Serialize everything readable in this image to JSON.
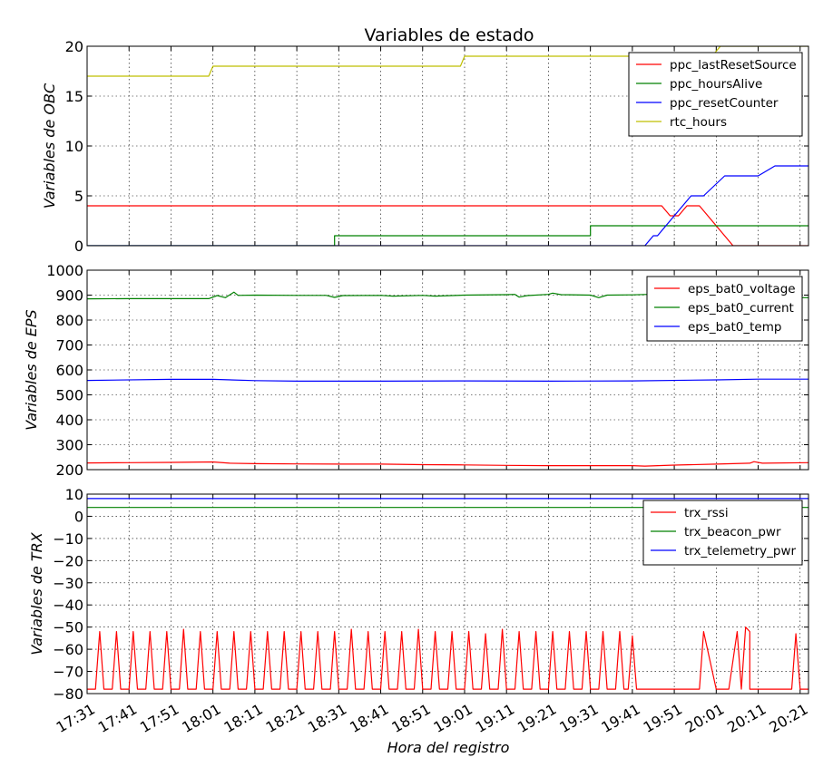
{
  "title": "Variables de estado",
  "xlabel": "Hora del registro",
  "x_ticks": [
    "17:31",
    "17:41",
    "17:51",
    "18:01",
    "18:11",
    "18:21",
    "18:31",
    "18:41",
    "18:51",
    "19:01",
    "19:11",
    "19:21",
    "19:31",
    "19:41",
    "19:51",
    "20:01",
    "20:11",
    "20:21"
  ],
  "chart_data": [
    {
      "type": "line",
      "ylabel": "Variables de OBC",
      "ylim": [
        0,
        20
      ],
      "yticks": [
        0,
        5,
        10,
        15,
        20
      ],
      "xlim": [
        "17:31",
        "20:23"
      ],
      "grid": true,
      "legend_position": "top-right",
      "series": [
        {
          "name": "ppc_lastResetSource",
          "color": "#ff0000",
          "points": [
            [
              "17:31",
              4
            ],
            [
              "19:48",
              4
            ],
            [
              "19:50",
              3
            ],
            [
              "19:52",
              3
            ],
            [
              "19:54",
              4
            ],
            [
              "19:57",
              4
            ],
            [
              "20:05",
              0
            ],
            [
              "20:23",
              0
            ]
          ]
        },
        {
          "name": "ppc_hoursAlive",
          "color": "#008000",
          "points": [
            [
              "17:31",
              0
            ],
            [
              "18:30",
              0
            ],
            [
              "18:30",
              1
            ],
            [
              "19:31",
              1
            ],
            [
              "19:31",
              2
            ],
            [
              "20:23",
              2
            ]
          ]
        },
        {
          "name": "ppc_resetCounter",
          "color": "#0000ff",
          "points": [
            [
              "17:31",
              0
            ],
            [
              "19:44",
              0
            ],
            [
              "19:46",
              1
            ],
            [
              "19:47",
              1
            ],
            [
              "19:55",
              5
            ],
            [
              "19:58",
              5
            ],
            [
              "20:03",
              7
            ],
            [
              "20:11",
              7
            ],
            [
              "20:15",
              8
            ],
            [
              "20:23",
              8
            ]
          ]
        },
        {
          "name": "rtc_hours",
          "color": "#bfbf00",
          "points": [
            [
              "17:31",
              17
            ],
            [
              "18:00",
              17
            ],
            [
              "18:01",
              18
            ],
            [
              "19:00",
              18
            ],
            [
              "19:01",
              19
            ],
            [
              "20:00",
              19
            ],
            [
              "20:02",
              20
            ],
            [
              "20:23",
              20
            ]
          ]
        }
      ]
    },
    {
      "type": "line",
      "ylabel": "Variables de EPS",
      "ylim": [
        200,
        1000
      ],
      "yticks": [
        200,
        300,
        400,
        500,
        600,
        700,
        800,
        900,
        1000
      ],
      "xlim": [
        "17:31",
        "20:23"
      ],
      "grid": true,
      "legend_position": "top-right",
      "series": [
        {
          "name": "eps_bat0_voltage",
          "color": "#ff0000",
          "points": [
            [
              "17:31",
              227
            ],
            [
              "17:41",
              228
            ],
            [
              "17:51",
              229
            ],
            [
              "18:01",
              231
            ],
            [
              "18:05",
              226
            ],
            [
              "18:11",
              224
            ],
            [
              "18:21",
              223
            ],
            [
              "18:31",
              222
            ],
            [
              "18:41",
              222
            ],
            [
              "18:51",
              220
            ],
            [
              "19:01",
              219
            ],
            [
              "19:11",
              217
            ],
            [
              "19:21",
              216
            ],
            [
              "19:31",
              216
            ],
            [
              "19:41",
              216
            ],
            [
              "19:44",
              214
            ],
            [
              "19:51",
              218
            ],
            [
              "20:01",
              222
            ],
            [
              "20:09",
              226
            ],
            [
              "20:10",
              232
            ],
            [
              "20:12",
              226
            ],
            [
              "20:23",
              228
            ]
          ]
        },
        {
          "name": "eps_bat0_current",
          "color": "#008000",
          "points": [
            [
              "17:31",
              885
            ],
            [
              "17:41",
              886
            ],
            [
              "17:51",
              886
            ],
            [
              "18:00",
              886
            ],
            [
              "18:02",
              898
            ],
            [
              "18:04",
              890
            ],
            [
              "18:06",
              912
            ],
            [
              "18:07",
              899
            ],
            [
              "18:11",
              900
            ],
            [
              "18:21",
              899
            ],
            [
              "18:28",
              899
            ],
            [
              "18:30",
              891
            ],
            [
              "18:32",
              898
            ],
            [
              "18:41",
              899
            ],
            [
              "18:44",
              896
            ],
            [
              "18:51",
              899
            ],
            [
              "18:54",
              896
            ],
            [
              "19:01",
              900
            ],
            [
              "19:11",
              902
            ],
            [
              "19:13",
              903
            ],
            [
              "19:14",
              892
            ],
            [
              "19:16",
              898
            ],
            [
              "19:21",
              903
            ],
            [
              "19:22",
              908
            ],
            [
              "19:24",
              902
            ],
            [
              "19:31",
              900
            ],
            [
              "19:33",
              890
            ],
            [
              "19:35",
              900
            ],
            [
              "19:41",
              901
            ],
            [
              "19:45",
              903
            ],
            [
              "19:47",
              888
            ],
            [
              "19:51",
              889
            ],
            [
              "20:01",
              889
            ],
            [
              "20:11",
              890
            ],
            [
              "20:23",
              890
            ]
          ]
        },
        {
          "name": "eps_bat0_temp",
          "color": "#0000ff",
          "points": [
            [
              "17:31",
              558
            ],
            [
              "17:51",
              562
            ],
            [
              "18:01",
              562
            ],
            [
              "18:11",
              557
            ],
            [
              "18:21",
              555
            ],
            [
              "18:41",
              555
            ],
            [
              "19:01",
              556
            ],
            [
              "19:21",
              555
            ],
            [
              "19:41",
              556
            ],
            [
              "20:01",
              560
            ],
            [
              "20:11",
              563
            ],
            [
              "20:23",
              563
            ]
          ]
        }
      ]
    },
    {
      "type": "line",
      "ylabel": "Variables de TRX",
      "ylim": [
        -80,
        10
      ],
      "yticks": [
        10,
        0,
        -10,
        -20,
        -30,
        -40,
        -50,
        -60,
        -70,
        -80
      ],
      "ytick_labels": [
        "10",
        "0",
        "−10",
        "−20",
        "−30",
        "−40",
        "−50",
        "−60",
        "−70",
        "−80"
      ],
      "xlim": [
        "17:31",
        "20:23"
      ],
      "grid": true,
      "legend_position": "top-right",
      "series": [
        {
          "name": "trx_rssi",
          "color": "#ff0000",
          "points": [
            [
              "17:31",
              -78
            ],
            [
              "17:33",
              -78
            ],
            [
              "17:34",
              -52
            ],
            [
              "17:35",
              -78
            ],
            [
              "17:37",
              -78
            ],
            [
              "17:38",
              -52
            ],
            [
              "17:39",
              -78
            ],
            [
              "17:41",
              -78
            ],
            [
              "17:42",
              -52
            ],
            [
              "17:43",
              -78
            ],
            [
              "17:45",
              -78
            ],
            [
              "17:46",
              -52
            ],
            [
              "17:47",
              -78
            ],
            [
              "17:49",
              -78
            ],
            [
              "17:50",
              -52
            ],
            [
              "17:51",
              -78
            ],
            [
              "17:53",
              -78
            ],
            [
              "17:54",
              -51
            ],
            [
              "17:55",
              -78
            ],
            [
              "17:57",
              -78
            ],
            [
              "17:58",
              -52
            ],
            [
              "17:59",
              -78
            ],
            [
              "18:01",
              -78
            ],
            [
              "18:02",
              -52
            ],
            [
              "18:03",
              -78
            ],
            [
              "18:05",
              -78
            ],
            [
              "18:06",
              -52
            ],
            [
              "18:07",
              -78
            ],
            [
              "18:09",
              -78
            ],
            [
              "18:10",
              -52
            ],
            [
              "18:11",
              -78
            ],
            [
              "18:13",
              -78
            ],
            [
              "18:14",
              -52
            ],
            [
              "18:15",
              -78
            ],
            [
              "18:17",
              -78
            ],
            [
              "18:18",
              -52
            ],
            [
              "18:19",
              -78
            ],
            [
              "18:21",
              -78
            ],
            [
              "18:22",
              -52
            ],
            [
              "18:23",
              -78
            ],
            [
              "18:25",
              -78
            ],
            [
              "18:26",
              -52
            ],
            [
              "18:27",
              -78
            ],
            [
              "18:29",
              -78
            ],
            [
              "18:30",
              -52
            ],
            [
              "18:31",
              -78
            ],
            [
              "18:33",
              -78
            ],
            [
              "18:34",
              -51
            ],
            [
              "18:35",
              -78
            ],
            [
              "18:37",
              -78
            ],
            [
              "18:38",
              -52
            ],
            [
              "18:39",
              -78
            ],
            [
              "18:41",
              -78
            ],
            [
              "18:42",
              -52
            ],
            [
              "18:43",
              -78
            ],
            [
              "18:45",
              -78
            ],
            [
              "18:46",
              -52
            ],
            [
              "18:47",
              -78
            ],
            [
              "18:49",
              -78
            ],
            [
              "18:50",
              -51
            ],
            [
              "18:51",
              -78
            ],
            [
              "18:53",
              -78
            ],
            [
              "18:54",
              -52
            ],
            [
              "18:55",
              -78
            ],
            [
              "18:57",
              -78
            ],
            [
              "18:58",
              -52
            ],
            [
              "18:59",
              -78
            ],
            [
              "19:01",
              -78
            ],
            [
              "19:02",
              -52
            ],
            [
              "19:03",
              -78
            ],
            [
              "19:05",
              -78
            ],
            [
              "19:06",
              -53
            ],
            [
              "19:07",
              -78
            ],
            [
              "19:09",
              -78
            ],
            [
              "19:10",
              -51
            ],
            [
              "19:11",
              -78
            ],
            [
              "19:13",
              -78
            ],
            [
              "19:14",
              -52
            ],
            [
              "19:15",
              -78
            ],
            [
              "19:17",
              -78
            ],
            [
              "19:18",
              -52
            ],
            [
              "19:19",
              -78
            ],
            [
              "19:21",
              -78
            ],
            [
              "19:22",
              -52
            ],
            [
              "19:23",
              -78
            ],
            [
              "19:25",
              -78
            ],
            [
              "19:26",
              -52
            ],
            [
              "19:27",
              -78
            ],
            [
              "19:29",
              -78
            ],
            [
              "19:30",
              -52
            ],
            [
              "19:31",
              -78
            ],
            [
              "19:33",
              -78
            ],
            [
              "19:34",
              -52
            ],
            [
              "19:35",
              -78
            ],
            [
              "19:37",
              -78
            ],
            [
              "19:38",
              -52
            ],
            [
              "19:39",
              -78
            ],
            [
              "19:40",
              -78
            ],
            [
              "19:41",
              -54
            ],
            [
              "19:42",
              -78
            ],
            [
              "19:50",
              -78
            ],
            [
              "19:57",
              -78
            ],
            [
              "19:58",
              -52
            ],
            [
              "20:01",
              -78
            ],
            [
              "20:04",
              -78
            ],
            [
              "20:06",
              -52
            ],
            [
              "20:07",
              -78
            ],
            [
              "20:08",
              -50
            ],
            [
              "20:09",
              -52
            ],
            [
              "20:09",
              -78
            ],
            [
              "20:19",
              -78
            ],
            [
              "20:20",
              -53
            ],
            [
              "20:21",
              -78
            ],
            [
              "20:23",
              -78
            ]
          ]
        },
        {
          "name": "trx_beacon_pwr",
          "color": "#008000",
          "points": [
            [
              "17:31",
              4
            ],
            [
              "20:23",
              4
            ]
          ]
        },
        {
          "name": "trx_telemetry_pwr",
          "color": "#0000ff",
          "points": [
            [
              "17:31",
              8
            ],
            [
              "20:23",
              8
            ]
          ]
        }
      ]
    }
  ]
}
